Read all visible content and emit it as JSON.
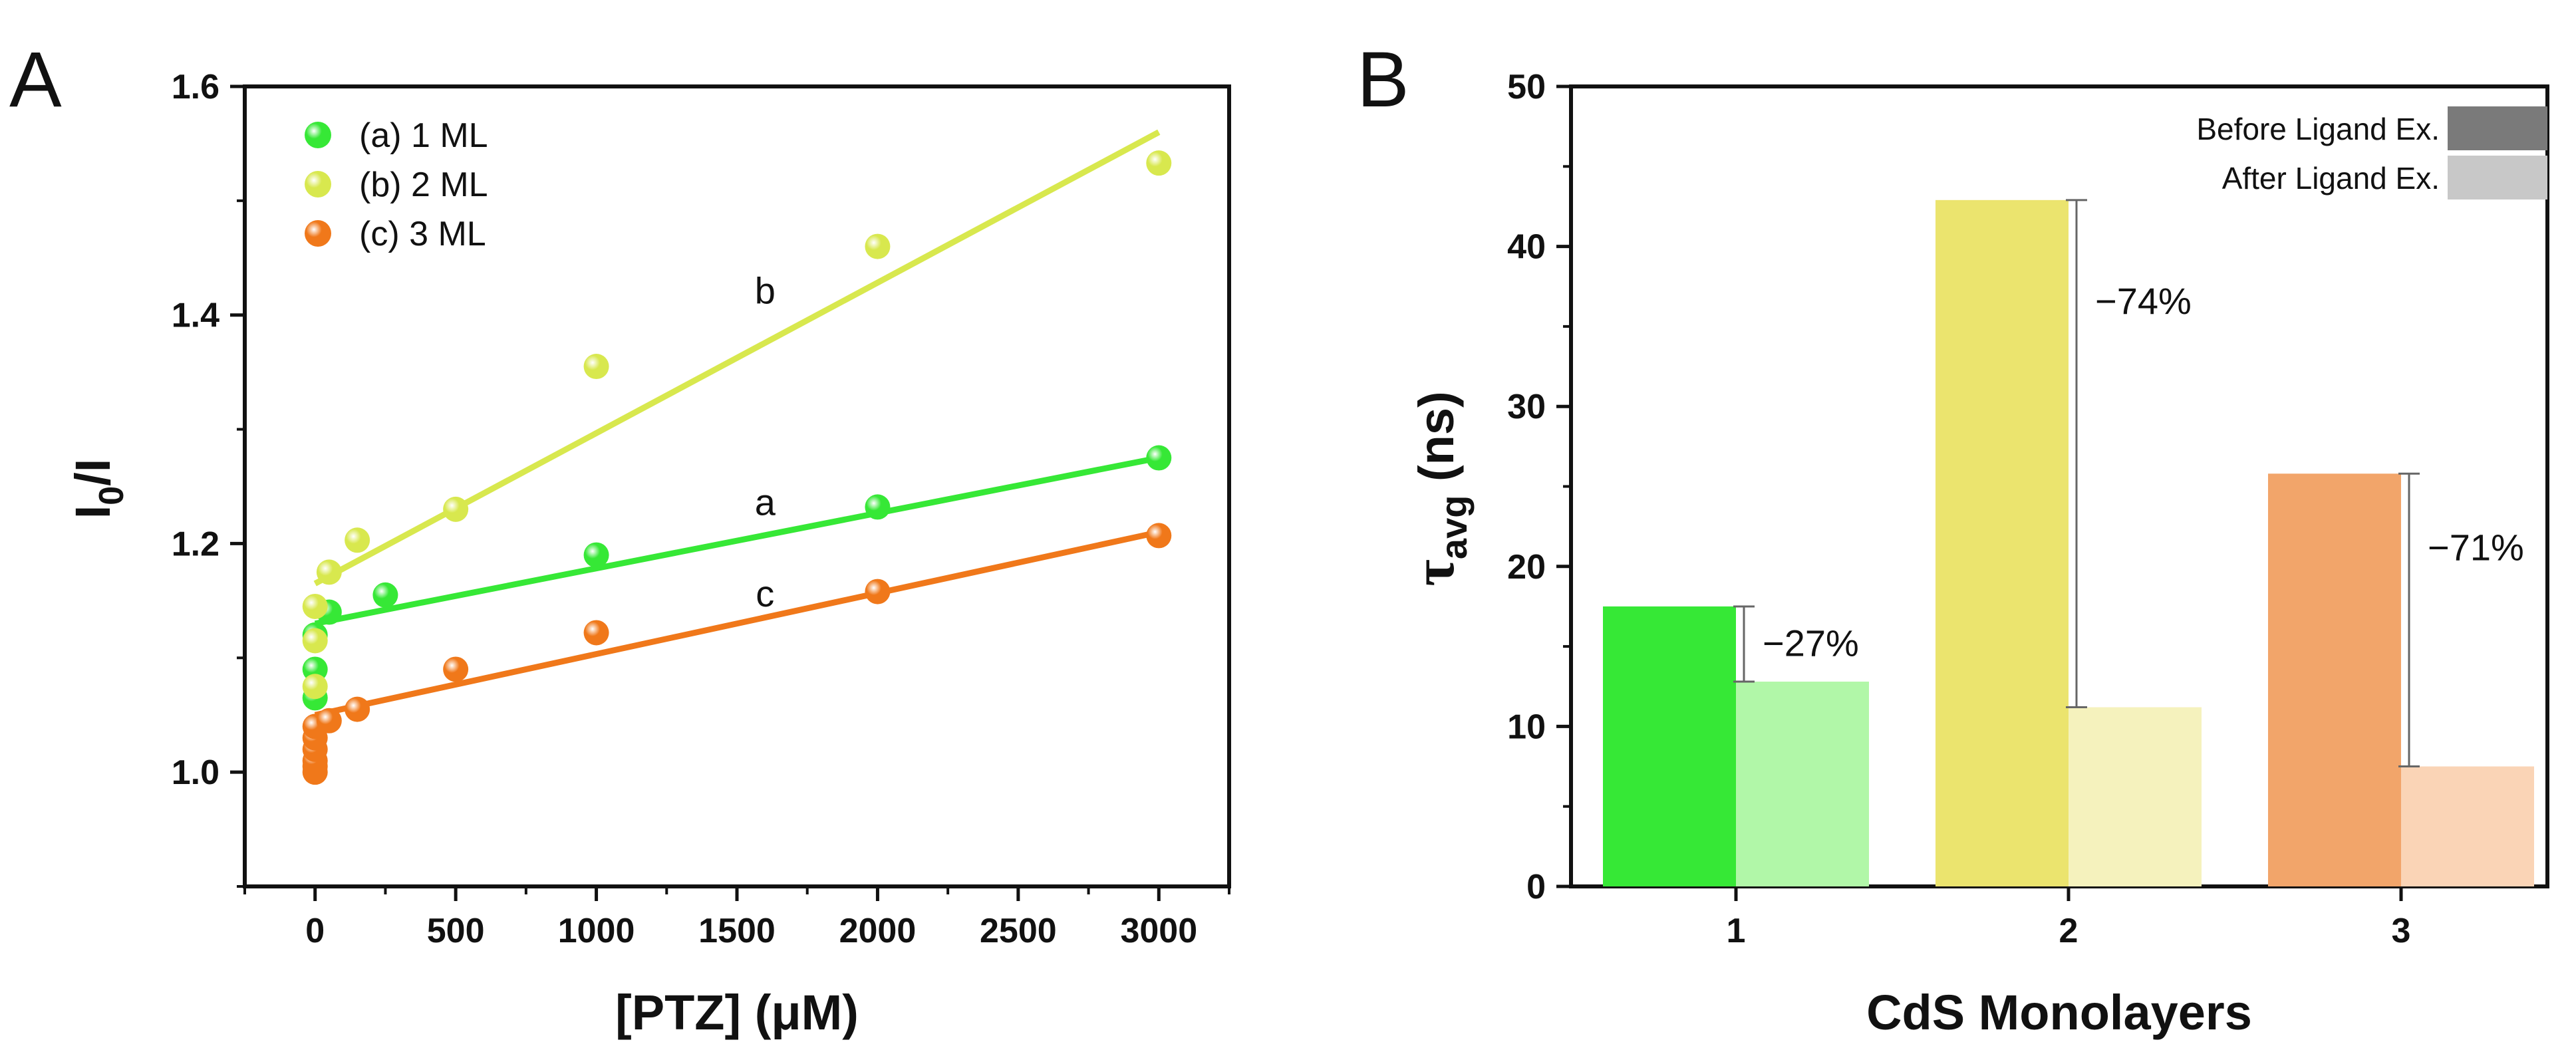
{
  "colors": {
    "green": "#36e836",
    "green_light": "#b1f7a8",
    "yellow": "#d8e84e",
    "bar_yellow": "#ebe46e",
    "bar_yellow_light": "#f5f2bd",
    "orange": "#f0781a",
    "bar_orange": "#f2a56a",
    "bar_orange_light": "#fad4b6",
    "legend_dark": "#7a7a7a",
    "legend_light": "#c8c8c8"
  },
  "chart_data": [
    {
      "panel": "A",
      "type": "scatter",
      "xlabel": "[PTZ] (μM)",
      "ylabel_main": "I",
      "ylabel_sub": "0",
      "ylabel_tail": "/I",
      "xlim": [
        -250,
        3250
      ],
      "ylim": [
        0.9,
        1.6
      ],
      "xticks": [
        0,
        500,
        1000,
        1500,
        2000,
        2500,
        3000
      ],
      "xtick_labels": [
        "0",
        "500",
        "1000",
        "1500",
        "2000",
        "2500",
        "3000"
      ],
      "yticks": [
        1.0,
        1.2,
        1.4,
        1.6
      ],
      "ytick_labels": [
        "1.0",
        "1.2",
        "1.4",
        "1.6"
      ],
      "legend": [
        "(a) 1 ML",
        "(b) 2 ML",
        "(c) 3 ML"
      ],
      "series": [
        {
          "name": "(a) 1 ML",
          "label": "a",
          "color": "#36e836",
          "x": [
            0,
            0,
            0,
            50,
            250,
            1000,
            2000,
            3000
          ],
          "y": [
            1.065,
            1.09,
            1.12,
            1.14,
            1.155,
            1.19,
            1.232,
            1.275
          ],
          "fit": {
            "x": [
              0,
              3000
            ],
            "y": [
              1.13,
              1.275
            ]
          },
          "label_pos": [
            1600,
            1.225
          ]
        },
        {
          "name": "(b) 2 ML",
          "label": "b",
          "color": "#d8e84e",
          "x": [
            0,
            0,
            0,
            50,
            150,
            500,
            1000,
            2000,
            3000
          ],
          "y": [
            1.075,
            1.115,
            1.145,
            1.175,
            1.203,
            1.23,
            1.355,
            1.46,
            1.533
          ],
          "fit": {
            "x": [
              0,
              3000
            ],
            "y": [
              1.165,
              1.56
            ]
          },
          "label_pos": [
            1600,
            1.41
          ]
        },
        {
          "name": "(c) 3 ML",
          "label": "c",
          "color": "#f0781a",
          "x": [
            0,
            0,
            0,
            0,
            0,
            0,
            50,
            150,
            500,
            1000,
            2000,
            3000
          ],
          "y": [
            1.0,
            1.005,
            1.01,
            1.02,
            1.03,
            1.04,
            1.045,
            1.055,
            1.09,
            1.122,
            1.158,
            1.207
          ],
          "fit": {
            "x": [
              0,
              3000
            ],
            "y": [
              1.05,
              1.21
            ]
          },
          "label_pos": [
            1600,
            1.145
          ]
        }
      ]
    },
    {
      "panel": "B",
      "type": "bar",
      "xlabel": "CdS Monolayers",
      "ylabel_main": "τ",
      "ylabel_sub": "avg",
      "ylabel_tail": " (ns)",
      "categories": [
        "1",
        "2",
        "3"
      ],
      "ylim": [
        0,
        50
      ],
      "yticks": [
        0,
        10,
        20,
        30,
        40,
        50
      ],
      "ytick_labels": [
        "0",
        "10",
        "20",
        "30",
        "40",
        "50"
      ],
      "legend": [
        "Before Ligand Ex.",
        "After Ligand Ex."
      ],
      "series": [
        {
          "name": "Before Ligand Ex.",
          "values": [
            17.5,
            42.9,
            25.8
          ],
          "colors": [
            "#36e836",
            "#ebe46e",
            "#f2a56a"
          ]
        },
        {
          "name": "After Ligand Ex.",
          "values": [
            12.8,
            11.2,
            7.5
          ],
          "colors": [
            "#b1f7a8",
            "#f5f2bd",
            "#fad4b6"
          ]
        }
      ],
      "change_labels": [
        "−27%",
        "−74%",
        "−71%"
      ]
    }
  ]
}
